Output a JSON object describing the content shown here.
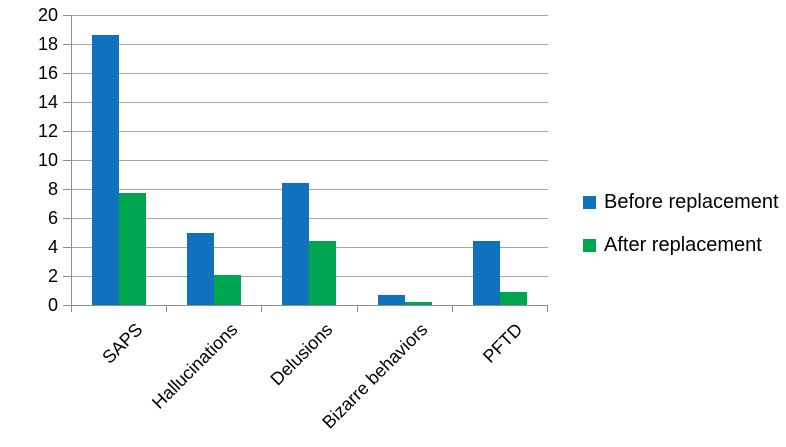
{
  "chart_data": {
    "type": "bar",
    "categories": [
      "SAPS",
      "Hallucinations",
      "Delusions",
      "Bizarre behaviors",
      "PFTD"
    ],
    "series": [
      {
        "name": "Before replacement",
        "color": "#1072bc",
        "values": [
          18.6,
          5.0,
          8.4,
          0.7,
          4.4
        ]
      },
      {
        "name": "After replacement",
        "color": "#00a64f",
        "values": [
          7.7,
          2.1,
          4.4,
          0.2,
          0.9
        ]
      }
    ],
    "title": "",
    "xlabel": "",
    "ylabel": "",
    "ylim": [
      0,
      20
    ],
    "ytick_step": 2,
    "ytick_labels": [
      "0",
      "2",
      "4",
      "6",
      "8",
      "10",
      "12",
      "14",
      "16",
      "18",
      "20"
    ],
    "grid": true,
    "legend_position": "right"
  },
  "colors": {
    "background": "#ffffff",
    "gridline": "#a6a6a6",
    "axis": "#8e8e8e",
    "text": "#000000"
  }
}
